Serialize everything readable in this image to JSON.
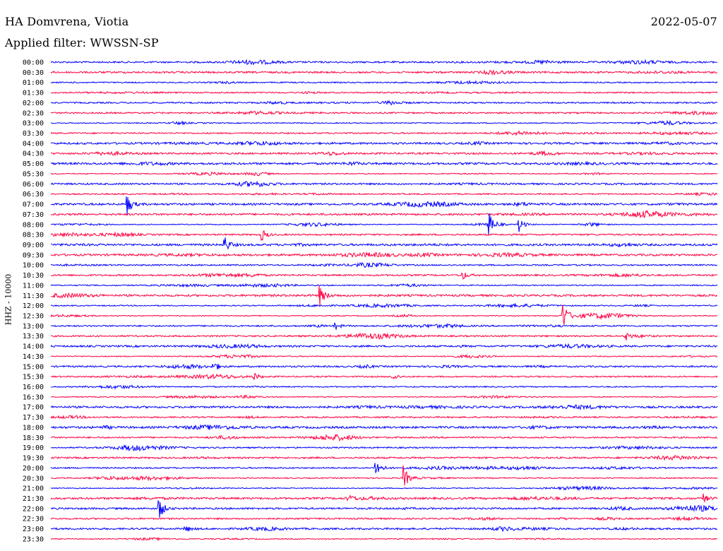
{
  "header": {
    "station": "HA Domvrena, Viotia",
    "filter": "Applied filter: WWSSN-SP",
    "date": "2022-05-07"
  },
  "chart_data": {
    "type": "line",
    "title": "HA Domvrena, Viotia",
    "subtitle": "Applied filter: WWSSN-SP",
    "ylabel": "HHZ - 10000",
    "xlabel": "",
    "trace_labels": [
      "00:00",
      "00:30",
      "01:00",
      "01:30",
      "02:00",
      "02:30",
      "03:00",
      "03:30",
      "04:00",
      "04:30",
      "05:00",
      "05:30",
      "06:00",
      "06:30",
      "07:00",
      "07:30",
      "08:00",
      "08:30",
      "09:00",
      "09:30",
      "10:00",
      "10:30",
      "11:00",
      "11:30",
      "12:00",
      "12:30",
      "13:00",
      "13:30",
      "14:00",
      "14:30",
      "15:00",
      "15:30",
      "16:00",
      "16:30",
      "17:00",
      "17:30",
      "18:00",
      "18:30",
      "19:00",
      "19:30",
      "20:00",
      "20:30",
      "21:00",
      "21:30",
      "22:00",
      "22:30",
      "23:00",
      "23:30"
    ],
    "trace_colors": [
      "#0000ff",
      "#ff0040"
    ],
    "grid": false,
    "legend": "none",
    "events": [
      {
        "trace": 14,
        "x": 0.115,
        "amp": 14
      },
      {
        "trace": 16,
        "x": 0.656,
        "amp": 20
      },
      {
        "trace": 16,
        "x": 0.703,
        "amp": 10
      },
      {
        "trace": 17,
        "x": 0.317,
        "amp": 8
      },
      {
        "trace": 18,
        "x": 0.261,
        "amp": 12
      },
      {
        "trace": 21,
        "x": 0.617,
        "amp": 7
      },
      {
        "trace": 23,
        "x": 0.404,
        "amp": 13
      },
      {
        "trace": 25,
        "x": 0.768,
        "amp": 22
      },
      {
        "trace": 26,
        "x": 0.426,
        "amp": 6
      },
      {
        "trace": 27,
        "x": 0.863,
        "amp": 6
      },
      {
        "trace": 30,
        "x": 0.244,
        "amp": 8
      },
      {
        "trace": 31,
        "x": 0.304,
        "amp": 6
      },
      {
        "trace": 31,
        "x": 0.513,
        "amp": 6
      },
      {
        "trace": 40,
        "x": 0.488,
        "amp": 14
      },
      {
        "trace": 41,
        "x": 0.529,
        "amp": 18
      },
      {
        "trace": 43,
        "x": 0.446,
        "amp": 5
      },
      {
        "trace": 43,
        "x": 0.98,
        "amp": 6
      },
      {
        "trace": 44,
        "x": 0.162,
        "amp": 18
      },
      {
        "trace": 46,
        "x": 0.202,
        "amp": 5
      }
    ]
  }
}
